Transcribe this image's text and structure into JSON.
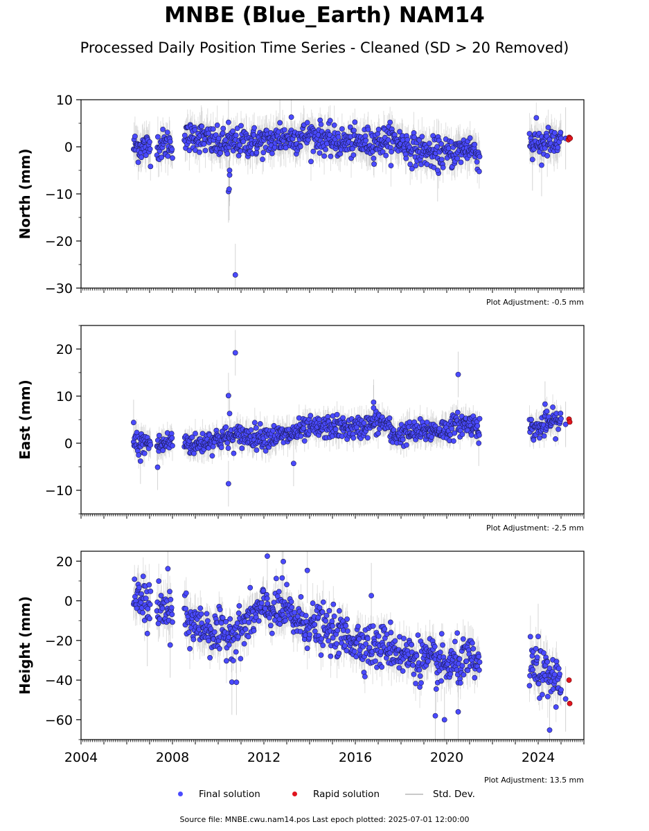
{
  "title": "MNBE (Blue_Earth) NAM14",
  "subtitle": "Processed Daily Position Time Series - Cleaned (SD > 20 Removed)",
  "footer": "Source file: MNBE.cwu.nam14.pos  Last epoch plotted: 2025-07-01 12:00:00",
  "legend": {
    "final": "Final solution",
    "rapid": "Rapid solution",
    "std": "Std. Dev."
  },
  "colors": {
    "final": "#4a4aff",
    "rapid": "#e0141e",
    "std": "#b8b8b8",
    "marker_edge": "#1a1a55"
  },
  "chart_data": [
    {
      "type": "scatter",
      "ylabel": "North (mm)",
      "adjustment": "Plot Adjustment: -0.5 mm",
      "xlim": [
        2004.0,
        2026.0
      ],
      "ylim": [
        -30,
        10
      ],
      "yticks": [
        10,
        0,
        -10,
        -20,
        -30
      ],
      "ytick_labels": [
        "10",
        "0",
        "−10",
        "−20",
        "−30"
      ],
      "xtick_labels_shown": false,
      "final_trend": [
        [
          2006.3,
          0.0
        ],
        [
          2007.0,
          0.0
        ],
        [
          2007.4,
          0.3
        ],
        [
          2008.0,
          0.8
        ],
        [
          2008.5,
          1.5
        ],
        [
          2009.0,
          2.5
        ],
        [
          2009.5,
          1.5
        ],
        [
          2010.0,
          0.5
        ],
        [
          2010.5,
          0.5
        ],
        [
          2011.0,
          1.0
        ],
        [
          2012.0,
          1.0
        ],
        [
          2013.0,
          1.8
        ],
        [
          2013.5,
          2.0
        ],
        [
          2014.0,
          2.5
        ],
        [
          2014.5,
          2.0
        ],
        [
          2015.0,
          1.0
        ],
        [
          2016.0,
          0.8
        ],
        [
          2017.0,
          1.0
        ],
        [
          2017.5,
          1.5
        ],
        [
          2018.0,
          1.0
        ],
        [
          2018.5,
          -0.5
        ],
        [
          2019.0,
          -1.0
        ],
        [
          2019.5,
          -1.5
        ],
        [
          2020.0,
          -1.5
        ],
        [
          2020.5,
          -1.0
        ],
        [
          2021.0,
          0.0
        ],
        [
          2021.45,
          -2.0
        ],
        [
          2023.6,
          1.0
        ],
        [
          2024.3,
          0.8
        ],
        [
          2025.0,
          0.5
        ]
      ],
      "final_noise": 1.6,
      "final_outliers": [
        [
          2010.75,
          -27.2
        ],
        [
          2010.45,
          -9.5
        ],
        [
          2010.48,
          -9.0
        ],
        [
          2010.5,
          -6.0
        ],
        [
          2010.5,
          -5.0
        ],
        [
          2010.45,
          5.2
        ],
        [
          2013.2,
          6.3
        ],
        [
          2012.7,
          5.1
        ],
        [
          2019.6,
          -5.0
        ],
        [
          2023.75,
          -2.7
        ],
        [
          2024.15,
          -3.9
        ],
        [
          2025.2,
          1.8
        ]
      ],
      "rapid_points": [
        [
          2025.32,
          1.5
        ],
        [
          2025.36,
          2.0
        ],
        [
          2025.4,
          1.8
        ]
      ]
    },
    {
      "type": "scatter",
      "ylabel": "East (mm)",
      "adjustment": "Plot Adjustment: -2.5 mm",
      "xlim": [
        2004.0,
        2026.0
      ],
      "ylim": [
        -15,
        25
      ],
      "yticks": [
        20,
        10,
        0,
        -10
      ],
      "ytick_labels": [
        "20",
        "10",
        "0",
        "−10"
      ],
      "xtick_labels_shown": false,
      "final_trend": [
        [
          2006.3,
          0.0
        ],
        [
          2007.0,
          0.0
        ],
        [
          2007.4,
          -0.5
        ],
        [
          2008.0,
          0.5
        ],
        [
          2008.5,
          0.5
        ],
        [
          2009.0,
          -0.5
        ],
        [
          2009.5,
          0.5
        ],
        [
          2010.0,
          1.0
        ],
        [
          2011.0,
          1.5
        ],
        [
          2012.0,
          1.5
        ],
        [
          2013.0,
          1.5
        ],
        [
          2013.5,
          2.5
        ],
        [
          2014.0,
          3.0
        ],
        [
          2015.0,
          3.5
        ],
        [
          2016.0,
          3.0
        ],
        [
          2017.0,
          4.5
        ],
        [
          2017.4,
          4.0
        ],
        [
          2017.6,
          1.5
        ],
        [
          2018.0,
          2.0
        ],
        [
          2019.0,
          2.5
        ],
        [
          2020.0,
          3.0
        ],
        [
          2020.5,
          4.0
        ],
        [
          2021.0,
          4.0
        ],
        [
          2021.45,
          4.0
        ],
        [
          2023.6,
          3.0
        ],
        [
          2024.0,
          3.0
        ],
        [
          2024.5,
          4.5
        ],
        [
          2025.0,
          4.5
        ]
      ],
      "final_noise": 1.2,
      "final_outliers": [
        [
          2010.75,
          19.2
        ],
        [
          2010.45,
          10.1
        ],
        [
          2010.5,
          6.3
        ],
        [
          2010.45,
          -8.6
        ],
        [
          2013.3,
          -4.3
        ],
        [
          2016.8,
          8.7
        ],
        [
          2016.8,
          7.5
        ],
        [
          2020.5,
          14.6
        ],
        [
          2006.6,
          -3.8
        ],
        [
          2006.3,
          4.4
        ],
        [
          2007.35,
          -5.1
        ],
        [
          2021.4,
          0.0
        ],
        [
          2024.3,
          8.3
        ],
        [
          2025.2,
          4.0
        ]
      ],
      "rapid_points": [
        [
          2025.35,
          5.1
        ],
        [
          2025.38,
          4.5
        ]
      ]
    },
    {
      "type": "scatter",
      "ylabel": "Height (mm)",
      "adjustment": "Plot Adjustment: 13.5 mm",
      "xlim": [
        2004.0,
        2026.0
      ],
      "ylim": [
        -70,
        25
      ],
      "yticks": [
        20,
        0,
        -20,
        -40,
        -60
      ],
      "ytick_labels": [
        "20",
        "0",
        "−20",
        "−40",
        "−60"
      ],
      "xticks": [
        2004,
        2008,
        2012,
        2016,
        2020,
        2024
      ],
      "xtick_labels_shown": true,
      "final_trend": [
        [
          2006.3,
          0.0
        ],
        [
          2007.0,
          0.0
        ],
        [
          2007.4,
          -5.0
        ],
        [
          2008.0,
          -5.0
        ],
        [
          2008.5,
          -10.0
        ],
        [
          2009.0,
          -12.0
        ],
        [
          2009.5,
          -14.0
        ],
        [
          2010.0,
          -18.0
        ],
        [
          2010.5,
          -16.0
        ],
        [
          2011.0,
          -15.0
        ],
        [
          2011.5,
          -8.0
        ],
        [
          2012.0,
          -4.0
        ],
        [
          2012.5,
          -5.0
        ],
        [
          2013.0,
          -6.0
        ],
        [
          2013.5,
          -10.0
        ],
        [
          2014.0,
          -12.0
        ],
        [
          2015.0,
          -16.0
        ],
        [
          2016.0,
          -20.0
        ],
        [
          2017.0,
          -24.0
        ],
        [
          2017.5,
          -22.0
        ],
        [
          2018.0,
          -27.0
        ],
        [
          2019.0,
          -30.0
        ],
        [
          2020.0,
          -33.0
        ],
        [
          2021.0,
          -30.0
        ],
        [
          2021.45,
          -33.0
        ],
        [
          2023.6,
          -32.0
        ],
        [
          2024.3,
          -38.0
        ],
        [
          2025.0,
          -40.0
        ]
      ],
      "final_noise": 5.5,
      "final_outliers": [
        [
          2012.15,
          22.5
        ],
        [
          2012.85,
          19.8
        ],
        [
          2013.9,
          15.3
        ],
        [
          2012.8,
          11.5
        ],
        [
          2007.8,
          16.2
        ],
        [
          2007.9,
          -22.3
        ],
        [
          2006.9,
          -16.5
        ],
        [
          2016.7,
          2.6
        ],
        [
          2010.6,
          -41.0
        ],
        [
          2010.8,
          -41.1
        ],
        [
          2019.5,
          -58.0
        ],
        [
          2019.9,
          -60.0
        ],
        [
          2020.5,
          -56.0
        ],
        [
          2024.5,
          -65.2
        ],
        [
          2024.0,
          -18.0
        ],
        [
          2025.2,
          -49.5
        ]
      ],
      "rapid_points": [
        [
          2025.35,
          -40.0
        ],
        [
          2025.38,
          -51.8
        ]
      ]
    }
  ]
}
